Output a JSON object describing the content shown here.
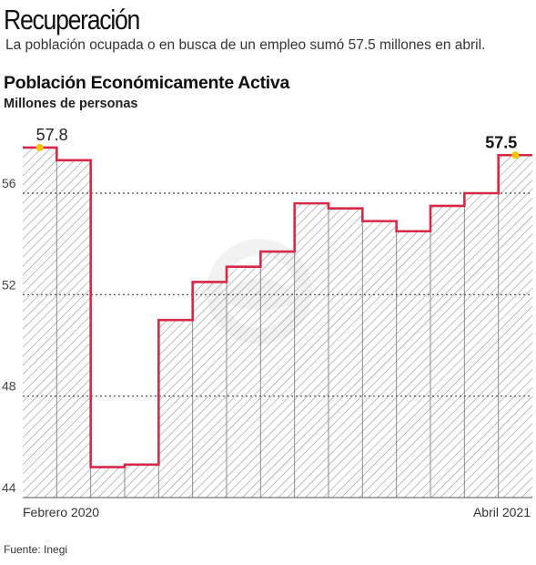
{
  "headline": "Recuperación",
  "subtitle": "La población ocupada o en busca de un empleo sumó 57.5 millones en abril.",
  "source": "Fuente: Inegi",
  "colors": {
    "line": "#d6294a",
    "hatch": "#8a8a8a",
    "marker": "#f5c400",
    "grid": "#444444"
  },
  "chart_data": {
    "type": "area",
    "title": "Población Económicamente Activa",
    "ylabel": "Millones de personas",
    "ylim": [
      44,
      58.5
    ],
    "yticks": [
      44,
      48,
      52,
      56
    ],
    "x_labels": {
      "first": "Febrero 2020",
      "last": "Abril 2021"
    },
    "step": true,
    "values": [
      57.8,
      57.3,
      45.2,
      45.3,
      51.0,
      52.5,
      53.1,
      53.7,
      55.6,
      55.4,
      54.9,
      54.5,
      55.5,
      56.0,
      57.5
    ],
    "annotations": {
      "first": "57.8",
      "last": "57.5"
    }
  }
}
